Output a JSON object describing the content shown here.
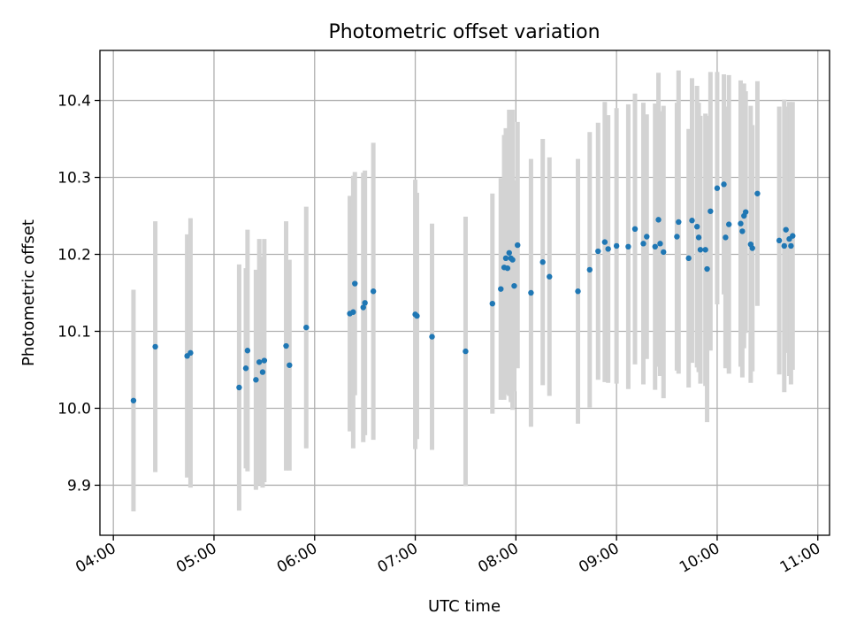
{
  "chart_data": {
    "type": "scatter",
    "title": "Photometric offset variation",
    "xlabel": "UTC time",
    "ylabel": "Photometric offset",
    "x_ticks": [
      "04:00",
      "05:00",
      "06:00",
      "07:00",
      "08:00",
      "09:00",
      "10:00",
      "11:00"
    ],
    "y_ticks": [
      "9.9",
      "10.0",
      "10.1",
      "10.2",
      "10.3",
      "10.4"
    ],
    "xlim": [
      "03:52",
      "11:07"
    ],
    "ylim": [
      9.835,
      10.465
    ],
    "grid": true,
    "colors": {
      "points": "#1f77b4",
      "error_bars": "#d3d3d3"
    },
    "series": [
      {
        "x": [
          "04:12",
          "04:25",
          "04:44",
          "04:46",
          "05:15",
          "05:19",
          "05:20",
          "05:25",
          "05:27",
          "05:29",
          "05:30",
          "05:43",
          "05:45",
          "05:55",
          "06:21",
          "06:23",
          "06:24",
          "06:29",
          "06:30",
          "06:35",
          "07:00",
          "07:01",
          "07:10",
          "07:30",
          "07:46",
          "07:51",
          "07:53",
          "07:54",
          "07:55",
          "07:56",
          "07:57",
          "07:58",
          "07:59",
          "08:01",
          "08:09",
          "08:16",
          "08:20",
          "08:37",
          "08:44",
          "08:49",
          "08:53",
          "08:55",
          "09:00",
          "09:07",
          "09:11",
          "09:16",
          "09:18",
          "09:23",
          "09:25",
          "09:26",
          "09:28",
          "09:36",
          "09:37",
          "09:43",
          "09:45",
          "09:48",
          "09:49",
          "09:50",
          "09:53",
          "09:54",
          "09:56",
          "10:00",
          "10:04",
          "10:05",
          "10:07",
          "10:14",
          "10:15",
          "10:16",
          "10:17",
          "10:20",
          "10:21",
          "10:24",
          "10:37",
          "10:40",
          "10:41",
          "10:43",
          "10:44",
          "10:45"
        ],
        "y": [
          10.01,
          10.08,
          10.068,
          10.072,
          10.027,
          10.052,
          10.075,
          10.037,
          10.06,
          10.047,
          10.062,
          10.081,
          10.056,
          10.105,
          10.123,
          10.125,
          10.162,
          10.131,
          10.137,
          10.152,
          10.122,
          10.12,
          10.093,
          10.074,
          10.136,
          10.155,
          10.183,
          10.195,
          10.182,
          10.202,
          10.195,
          10.193,
          10.159,
          10.212,
          10.15,
          10.19,
          10.171,
          10.152,
          10.18,
          10.204,
          10.216,
          10.207,
          10.211,
          10.21,
          10.233,
          10.214,
          10.223,
          10.21,
          10.245,
          10.214,
          10.203,
          10.223,
          10.242,
          10.195,
          10.244,
          10.236,
          10.222,
          10.206,
          10.206,
          10.181,
          10.256,
          10.286,
          10.291,
          10.222,
          10.239,
          10.24,
          10.23,
          10.25,
          10.255,
          10.213,
          10.208,
          10.279,
          10.218,
          10.211,
          10.232,
          10.22,
          10.211,
          10.224
        ],
        "err": [
          0.144,
          0.163,
          0.158,
          0.175,
          0.16,
          0.13,
          0.157,
          0.143,
          0.16,
          0.15,
          0.158,
          0.162,
          0.137,
          0.157,
          0.153,
          0.177,
          0.145,
          0.175,
          0.172,
          0.193,
          0.175,
          0.16,
          0.147,
          0.175,
          0.143,
          0.144,
          0.172,
          0.169,
          0.164,
          0.186,
          0.187,
          0.195,
          0.137,
          0.16,
          0.174,
          0.16,
          0.155,
          0.172,
          0.179,
          0.167,
          0.182,
          0.174,
          0.179,
          0.185,
          0.176,
          0.183,
          0.159,
          0.186,
          0.191,
          0.172,
          0.19,
          0.174,
          0.197,
          0.168,
          0.185,
          0.183,
          0.175,
          0.174,
          0.177,
          0.199,
          0.181,
          0.151,
          0.143,
          0.17,
          0.194,
          0.186,
          0.19,
          0.172,
          0.157,
          0.18,
          0.16,
          0.146,
          0.174,
          0.19,
          0.16,
          0.178,
          0.18,
          0.174
        ]
      }
    ]
  }
}
